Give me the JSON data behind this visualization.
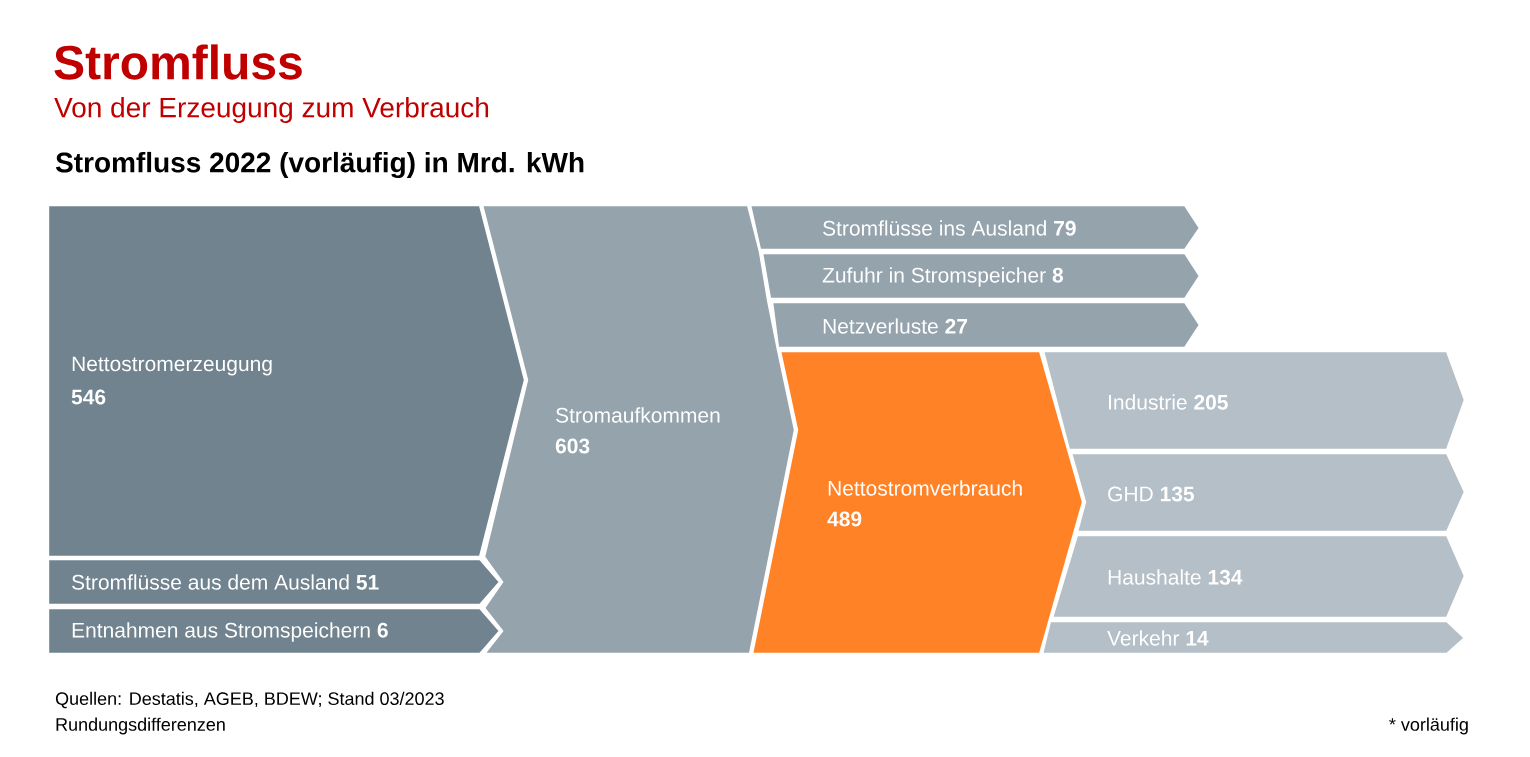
{
  "chart_data": {
    "type": "other",
    "title": "Stromfluss",
    "subtitle": "Von der Erzeugung zum Verbrauch",
    "annotations": [
      "Stromfluss 2022 (vorläufig) in Mrd. kWh",
      "Quellen: Destatis, AGEB, BDEW; Stand 03/2023",
      "Rundungsdifferenzen",
      "* vorläufig"
    ],
    "categories": [
      "Nettostromerzeugung",
      "Stromflüsse aus dem Ausland",
      "Entnahmen aus Stromspeichern",
      "Stromaufkommen",
      "Stromflüsse ins Ausland",
      "Zufuhr in Stromspeicher",
      "Netzverluste",
      "Nettostromverbrauch",
      "Industrie",
      "GHD",
      "Haushalte",
      "Verkehr"
    ],
    "values": [
      546,
      51,
      6,
      603,
      79,
      8,
      27,
      489,
      205,
      135,
      134,
      14
    ],
    "colors": [
      "#71838f",
      "#71838f",
      "#71838f",
      "#95a3ad",
      "#95a3ad",
      "#95a3ad",
      "#95a3ad",
      "#ff8227",
      "#b4bfc7",
      "#b4bfc7",
      "#b4bfc7",
      "#b4bfc7"
    ],
    "data_labels": true
  }
}
